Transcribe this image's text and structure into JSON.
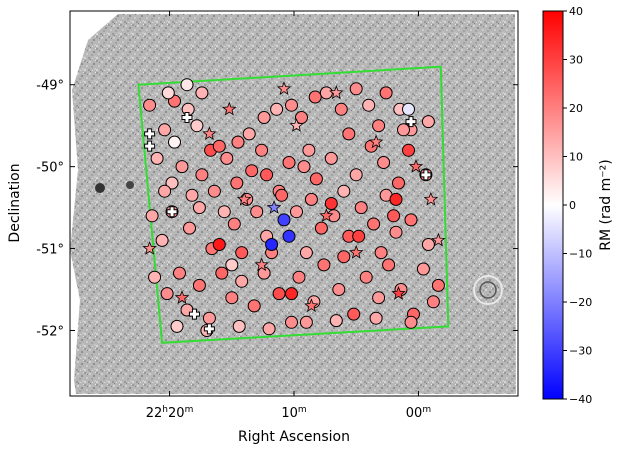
{
  "chart_data": {
    "type": "scatter",
    "xlabel": "Right Ascension",
    "ylabel": "Declination",
    "x_ticks": [
      {
        "value": 20,
        "h": "22",
        "m": "20"
      },
      {
        "value": 10,
        "h": "",
        "m": "10"
      },
      {
        "value": 0,
        "h": "",
        "m": "00"
      }
    ],
    "y_ticks": [
      {
        "value": -49,
        "label": "-49°"
      },
      {
        "value": -50,
        "label": "-50°"
      },
      {
        "value": -51,
        "label": "-51°"
      },
      {
        "value": -52,
        "label": "-52°"
      }
    ],
    "xlim": [
      28.0,
      -8.0
    ],
    "ylim": [
      -52.8,
      -48.1
    ],
    "x_axis_note": "RA offset in minutes from 22h00m, increasing to the left",
    "field_boundary": {
      "color": "#33dd33",
      "corners": [
        [
          22.5,
          -49.0
        ],
        [
          -1.8,
          -48.78
        ],
        [
          -2.4,
          -51.95
        ],
        [
          20.6,
          -52.15
        ]
      ]
    },
    "colorbar": {
      "label": "RM (rad m⁻²)",
      "min": -40,
      "max": 40,
      "ticks": [
        40,
        30,
        20,
        10,
        0,
        -10,
        -20,
        -30,
        -40
      ],
      "tick_labels": [
        "40",
        "30",
        "20",
        "10",
        "0",
        "−10",
        "−20",
        "−30",
        "−40"
      ],
      "colormap": "bwr"
    },
    "series": [
      {
        "marker": "circle",
        "points": [
          [
            20.4,
            -49.55,
            14
          ],
          [
            19.6,
            -49.2,
            22
          ],
          [
            20.1,
            -49.1,
            6
          ],
          [
            18.5,
            -49.3,
            10
          ],
          [
            17.8,
            -49.5,
            8
          ],
          [
            21.6,
            -49.25,
            18
          ],
          [
            16.7,
            -49.8,
            28
          ],
          [
            16.0,
            -49.75,
            24
          ],
          [
            15.4,
            -49.9,
            18
          ],
          [
            14.5,
            -49.7,
            20
          ],
          [
            13.6,
            -49.6,
            14
          ],
          [
            12.4,
            -49.4,
            16
          ],
          [
            11.4,
            -49.3,
            12
          ],
          [
            10.2,
            -49.25,
            18
          ],
          [
            9.4,
            -49.4,
            20
          ],
          [
            8.3,
            -49.15,
            22
          ],
          [
            7.4,
            -49.1,
            14
          ],
          [
            6.2,
            -49.3,
            20
          ],
          [
            5.0,
            -49.05,
            18
          ],
          [
            4.0,
            -49.25,
            12
          ],
          [
            2.6,
            -49.1,
            22
          ],
          [
            1.5,
            -49.3,
            10
          ],
          [
            0.6,
            -49.55,
            16
          ],
          [
            -0.8,
            -49.45,
            14
          ],
          [
            21.0,
            -49.9,
            12
          ],
          [
            19.8,
            -50.2,
            10
          ],
          [
            19.0,
            -50.0,
            16
          ],
          [
            18.2,
            -50.35,
            14
          ],
          [
            17.4,
            -50.1,
            20
          ],
          [
            16.4,
            -50.3,
            18
          ],
          [
            15.6,
            -50.55,
            12
          ],
          [
            14.6,
            -50.2,
            22
          ],
          [
            13.4,
            -50.05,
            24
          ],
          [
            12.2,
            -50.1,
            26
          ],
          [
            11.2,
            -50.3,
            20
          ],
          [
            10.4,
            -49.95,
            22
          ],
          [
            9.2,
            -50.0,
            18
          ],
          [
            8.2,
            -50.15,
            24
          ],
          [
            7.0,
            -49.9,
            16
          ],
          [
            6.0,
            -50.3,
            12
          ],
          [
            5.0,
            -50.1,
            14
          ],
          [
            3.8,
            -49.75,
            22
          ],
          [
            2.8,
            -49.95,
            18
          ],
          [
            1.6,
            -50.2,
            24
          ],
          [
            0.8,
            -49.8,
            30
          ],
          [
            -0.6,
            -50.1,
            20
          ],
          [
            21.4,
            -50.6,
            14
          ],
          [
            20.6,
            -50.9,
            12
          ],
          [
            19.8,
            -50.55,
            18
          ],
          [
            18.4,
            -50.75,
            16
          ],
          [
            17.6,
            -50.5,
            14
          ],
          [
            16.6,
            -51.0,
            22
          ],
          [
            14.8,
            -50.7,
            20
          ],
          [
            14.2,
            -51.05,
            26
          ],
          [
            13.0,
            -50.55,
            18
          ],
          [
            12.2,
            -50.85,
            14
          ],
          [
            11.0,
            -50.35,
            24
          ],
          [
            9.8,
            -50.55,
            16
          ],
          [
            8.6,
            -50.4,
            20
          ],
          [
            7.8,
            -50.75,
            24
          ],
          [
            6.8,
            -50.6,
            18
          ],
          [
            5.6,
            -50.85,
            26
          ],
          [
            4.6,
            -50.5,
            20
          ],
          [
            3.6,
            -50.7,
            22
          ],
          [
            2.6,
            -50.35,
            16
          ],
          [
            1.8,
            -50.8,
            18
          ],
          [
            0.6,
            -50.65,
            22
          ],
          [
            -0.8,
            -50.95,
            14
          ],
          [
            21.2,
            -51.35,
            12
          ],
          [
            20.2,
            -51.55,
            18
          ],
          [
            19.2,
            -51.3,
            20
          ],
          [
            18.6,
            -51.75,
            14
          ],
          [
            17.6,
            -51.45,
            22
          ],
          [
            16.8,
            -51.85,
            16
          ],
          [
            15.8,
            -51.3,
            24
          ],
          [
            15.0,
            -51.6,
            20
          ],
          [
            14.2,
            -51.4,
            14
          ],
          [
            13.2,
            -51.7,
            22
          ],
          [
            12.4,
            -51.3,
            16
          ],
          [
            11.2,
            -51.55,
            28
          ],
          [
            10.2,
            -51.9,
            18
          ],
          [
            9.6,
            -51.35,
            20
          ],
          [
            8.4,
            -51.65,
            14
          ],
          [
            7.6,
            -51.2,
            22
          ],
          [
            6.4,
            -51.5,
            18
          ],
          [
            5.2,
            -51.8,
            26
          ],
          [
            4.2,
            -51.35,
            20
          ],
          [
            3.2,
            -51.6,
            16
          ],
          [
            2.4,
            -51.2,
            22
          ],
          [
            1.4,
            -51.5,
            18
          ],
          [
            0.4,
            -51.8,
            24
          ],
          [
            -1.2,
            -51.65,
            20
          ],
          [
            19.4,
            -51.95,
            8
          ],
          [
            17.0,
            -52.0,
            12
          ],
          [
            14.4,
            -51.95,
            10
          ],
          [
            12.0,
            -51.98,
            14
          ],
          [
            9.0,
            -51.9,
            16
          ],
          [
            6.6,
            -51.88,
            12
          ],
          [
            3.4,
            -51.85,
            14
          ],
          [
            0.6,
            -51.9,
            18
          ],
          [
            -1.6,
            -51.45,
            22
          ],
          [
            16.0,
            -50.95,
            36
          ],
          [
            10.2,
            -51.55,
            34
          ],
          [
            1.8,
            -50.4,
            34
          ],
          [
            4.8,
            -50.85,
            30
          ],
          [
            7.0,
            -50.45,
            32
          ],
          [
            18.6,
            -49.0,
            4
          ],
          [
            19.6,
            -49.7,
            2
          ],
          [
            0.8,
            -49.3,
            -4
          ],
          [
            15.0,
            -51.2,
            8
          ],
          [
            13.8,
            -50.4,
            18
          ],
          [
            12.6,
            -49.8,
            20
          ],
          [
            8.8,
            -49.8,
            16
          ],
          [
            5.6,
            -49.6,
            22
          ],
          [
            11.8,
            -51.05,
            20
          ],
          [
            9.0,
            -51.05,
            14
          ],
          [
            6.0,
            -51.1,
            24
          ],
          [
            3.0,
            -51.05,
            20
          ],
          [
            -0.4,
            -51.25,
            16
          ],
          [
            20.4,
            -50.3,
            14
          ],
          [
            1.2,
            -49.55,
            16
          ],
          [
            3.2,
            -49.5,
            20
          ],
          [
            2.0,
            -50.6,
            26
          ],
          [
            17.4,
            -49.1,
            12
          ]
        ]
      },
      {
        "marker": "star",
        "points": [
          [
            15.2,
            -49.3,
            22
          ],
          [
            10.8,
            -49.05,
            18
          ],
          [
            6.6,
            -49.1,
            16
          ],
          [
            3.4,
            -49.7,
            20
          ],
          [
            0.2,
            -50.0,
            24
          ],
          [
            -1.0,
            -50.4,
            18
          ],
          [
            21.6,
            -51.0,
            18
          ],
          [
            14.0,
            -50.4,
            20
          ],
          [
            7.4,
            -50.6,
            24
          ],
          [
            5.0,
            -51.05,
            22
          ],
          [
            1.6,
            -51.55,
            30
          ],
          [
            12.6,
            -51.2,
            20
          ],
          [
            19.0,
            -51.6,
            24
          ],
          [
            8.6,
            -51.7,
            22
          ],
          [
            -1.6,
            -50.9,
            16
          ],
          [
            16.8,
            -49.6,
            20
          ],
          [
            11.6,
            -50.5,
            -20
          ],
          [
            9.8,
            -49.5,
            12
          ]
        ]
      },
      {
        "marker": "circle",
        "points": [
          [
            10.8,
            -50.65,
            -30
          ],
          [
            10.4,
            -50.85,
            -32
          ],
          [
            11.8,
            -50.95,
            -34
          ]
        ]
      },
      {
        "marker": "plus",
        "points": [
          [
            21.6,
            -49.6,
            null
          ],
          [
            21.6,
            -49.75,
            null
          ],
          [
            19.8,
            -50.55,
            null
          ],
          [
            18.6,
            -49.4,
            null
          ],
          [
            0.6,
            -49.45,
            null
          ],
          [
            -0.6,
            -50.1,
            null
          ],
          [
            18.0,
            -51.8,
            null
          ],
          [
            16.8,
            -51.98,
            null
          ]
        ]
      }
    ]
  }
}
